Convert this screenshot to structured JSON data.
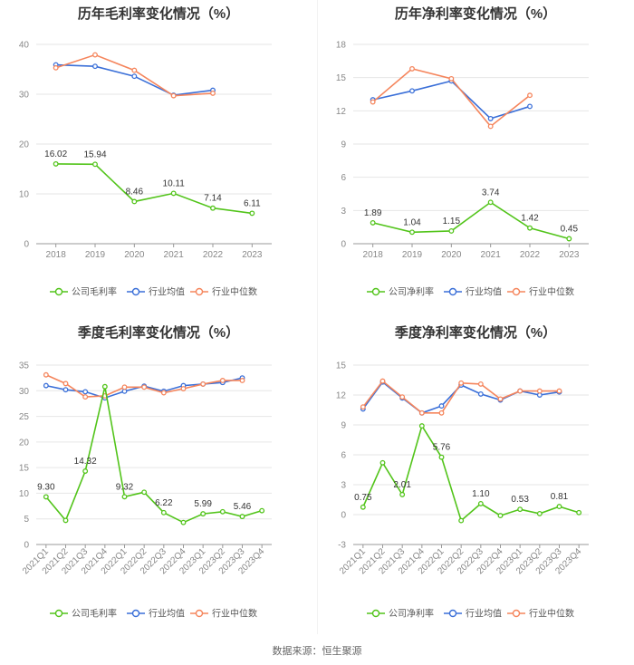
{
  "source": "数据来源：恒生聚源",
  "colors": {
    "company": "#52c41a",
    "avg": "#3a6fd8",
    "median": "#f5855c",
    "grid": "#e6e6e6",
    "axis": "#999999"
  },
  "chart_data": [
    {
      "id": "annual-gross",
      "type": "line",
      "title": "历年毛利率变化情况（%）",
      "categories": [
        "2018",
        "2019",
        "2020",
        "2021",
        "2022",
        "2023"
      ],
      "ylim": [
        0,
        40
      ],
      "yticks": [
        0,
        10,
        20,
        30,
        40
      ],
      "rotate_x": false,
      "series": [
        {
          "name": "公司毛利率",
          "key": "company",
          "values": [
            16.02,
            15.94,
            8.46,
            10.11,
            7.14,
            6.11
          ],
          "labels": [
            "16.02",
            "15.94",
            "8.46",
            "10.11",
            "7.14",
            "6.11"
          ],
          "label_idx": [
            0,
            1,
            2,
            3,
            4,
            5
          ]
        },
        {
          "name": "行业均值",
          "key": "avg",
          "values": [
            35.9,
            35.6,
            33.6,
            29.8,
            30.8,
            null
          ]
        },
        {
          "name": "行业中位数",
          "key": "median",
          "values": [
            35.3,
            37.9,
            34.8,
            29.7,
            30.2,
            null
          ]
        }
      ]
    },
    {
      "id": "annual-net",
      "type": "line",
      "title": "历年净利率变化情况（%）",
      "categories": [
        "2018",
        "2019",
        "2020",
        "2021",
        "2022",
        "2023"
      ],
      "ylim": [
        0,
        18
      ],
      "yticks": [
        0,
        3,
        6,
        9,
        12,
        15,
        18
      ],
      "rotate_x": false,
      "series": [
        {
          "name": "公司净利率",
          "key": "company",
          "values": [
            1.89,
            1.04,
            1.15,
            3.74,
            1.42,
            0.45
          ],
          "labels": [
            "1.89",
            "1.04",
            "1.15",
            "3.74",
            "1.42",
            "0.45"
          ],
          "label_idx": [
            0,
            1,
            2,
            3,
            4,
            5
          ]
        },
        {
          "name": "行业均值",
          "key": "avg",
          "values": [
            13.0,
            13.8,
            14.7,
            11.3,
            12.4,
            null
          ]
        },
        {
          "name": "行业中位数",
          "key": "median",
          "values": [
            12.8,
            15.8,
            14.9,
            10.6,
            13.4,
            null
          ]
        }
      ]
    },
    {
      "id": "quarterly-gross",
      "type": "line",
      "title": "季度毛利率变化情况（%）",
      "categories": [
        "2021Q1",
        "2021Q2",
        "2021Q3",
        "2021Q4",
        "2022Q1",
        "2022Q2",
        "2022Q3",
        "2022Q4",
        "2023Q1",
        "2023Q2",
        "2023Q3",
        "2023Q4"
      ],
      "ylim": [
        0,
        35
      ],
      "yticks": [
        0,
        5,
        10,
        15,
        20,
        25,
        30,
        35
      ],
      "rotate_x": true,
      "series": [
        {
          "name": "公司毛利率",
          "key": "company",
          "values": [
            9.3,
            4.7,
            14.32,
            30.8,
            9.32,
            10.2,
            6.22,
            4.3,
            5.99,
            6.4,
            5.46,
            6.6
          ],
          "labels": [
            "9.30",
            "14.32",
            "9.32",
            "6.22",
            "5.99",
            "5.46"
          ],
          "label_idx": [
            0,
            2,
            4,
            6,
            8,
            10
          ]
        },
        {
          "name": "行业均值",
          "key": "avg",
          "values": [
            31.0,
            30.2,
            29.8,
            28.6,
            29.9,
            30.9,
            29.9,
            31.0,
            31.3,
            31.6,
            32.5,
            null
          ]
        },
        {
          "name": "行业中位数",
          "key": "median",
          "values": [
            33.1,
            31.4,
            28.8,
            29.0,
            30.7,
            30.7,
            29.6,
            30.4,
            31.3,
            32.0,
            32.0,
            null
          ]
        }
      ]
    },
    {
      "id": "quarterly-net",
      "type": "line",
      "title": "季度净利率变化情况（%）",
      "categories": [
        "2021Q1",
        "2021Q2",
        "2021Q3",
        "2021Q4",
        "2022Q1",
        "2022Q2",
        "2022Q3",
        "2022Q4",
        "2023Q1",
        "2023Q2",
        "2023Q3",
        "2023Q4"
      ],
      "ylim": [
        -3,
        15
      ],
      "yticks": [
        -3,
        0,
        3,
        6,
        9,
        12,
        15
      ],
      "rotate_x": true,
      "series": [
        {
          "name": "公司净利率",
          "key": "company",
          "values": [
            0.75,
            5.2,
            2.01,
            8.9,
            5.76,
            -0.6,
            1.1,
            -0.1,
            0.53,
            0.1,
            0.81,
            0.2
          ],
          "labels": [
            "0.75",
            "2.01",
            "5.76",
            "1.10",
            "0.53",
            "0.81"
          ],
          "label_idx": [
            0,
            2,
            4,
            6,
            8,
            10
          ]
        },
        {
          "name": "行业均值",
          "key": "avg",
          "values": [
            10.6,
            13.3,
            11.7,
            10.2,
            10.9,
            13.0,
            12.1,
            11.5,
            12.4,
            12.0,
            12.3,
            null
          ]
        },
        {
          "name": "行业中位数",
          "key": "median",
          "values": [
            10.8,
            13.4,
            11.8,
            10.2,
            10.2,
            13.2,
            13.1,
            11.6,
            12.4,
            12.4,
            12.4,
            null
          ]
        }
      ]
    }
  ]
}
